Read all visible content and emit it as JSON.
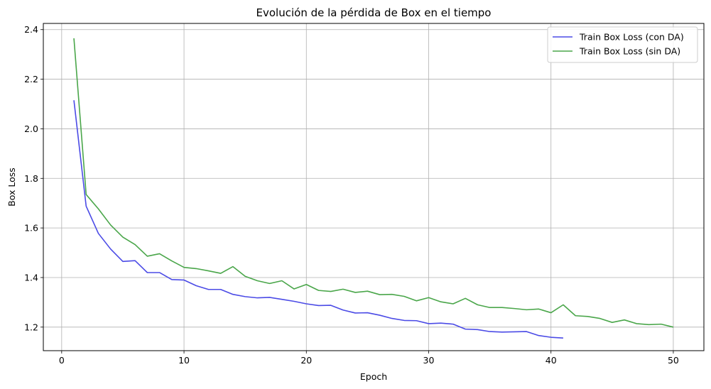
{
  "chart_data": {
    "type": "line",
    "title": "Evolución de la pérdida de Box en el tiempo",
    "xlabel": "Epoch",
    "ylabel": "Box Loss",
    "xlim": [
      -1.5,
      52.5
    ],
    "ylim": [
      1.105,
      2.425
    ],
    "xticks": [
      0,
      10,
      20,
      30,
      40,
      50
    ],
    "yticks": [
      1.2,
      1.4,
      1.6,
      1.8,
      2.0,
      2.2,
      2.4
    ],
    "grid": true,
    "legend_position": "top-right",
    "series": [
      {
        "name": "Train Box Loss (con DA)",
        "color": "#4b4be6",
        "x": [
          1,
          2,
          3,
          4,
          5,
          6,
          7,
          8,
          9,
          10,
          11,
          12,
          13,
          14,
          15,
          16,
          17,
          18,
          19,
          20,
          21,
          22,
          23,
          24,
          25,
          26,
          27,
          28,
          29,
          30,
          31,
          32,
          33,
          34,
          35,
          36,
          37,
          38,
          39,
          40,
          41
        ],
        "values": [
          2.115,
          1.688,
          1.578,
          1.515,
          1.465,
          1.468,
          1.42,
          1.42,
          1.392,
          1.39,
          1.367,
          1.352,
          1.352,
          1.332,
          1.323,
          1.318,
          1.32,
          1.312,
          1.304,
          1.294,
          1.287,
          1.288,
          1.269,
          1.257,
          1.258,
          1.248,
          1.235,
          1.227,
          1.226,
          1.214,
          1.216,
          1.212,
          1.192,
          1.19,
          1.182,
          1.18,
          1.181,
          1.182,
          1.166,
          1.159,
          1.156
        ]
      },
      {
        "name": "Train Box Loss (sin DA)",
        "color": "#4aa64a",
        "x": [
          1,
          2,
          3,
          4,
          5,
          6,
          7,
          8,
          9,
          10,
          11,
          12,
          13,
          14,
          15,
          16,
          17,
          18,
          19,
          20,
          21,
          22,
          23,
          24,
          25,
          26,
          27,
          28,
          29,
          30,
          31,
          32,
          33,
          34,
          35,
          36,
          37,
          38,
          39,
          40,
          41,
          42,
          43,
          44,
          45,
          46,
          47,
          48,
          49,
          50
        ],
        "values": [
          2.365,
          1.735,
          1.677,
          1.612,
          1.563,
          1.533,
          1.486,
          1.496,
          1.467,
          1.441,
          1.436,
          1.427,
          1.417,
          1.444,
          1.405,
          1.387,
          1.376,
          1.387,
          1.354,
          1.372,
          1.348,
          1.344,
          1.353,
          1.34,
          1.345,
          1.331,
          1.332,
          1.324,
          1.306,
          1.319,
          1.302,
          1.294,
          1.316,
          1.29,
          1.279,
          1.279,
          1.275,
          1.27,
          1.273,
          1.258,
          1.29,
          1.246,
          1.243,
          1.235,
          1.219,
          1.229,
          1.214,
          1.21,
          1.212,
          1.2
        ]
      }
    ]
  }
}
